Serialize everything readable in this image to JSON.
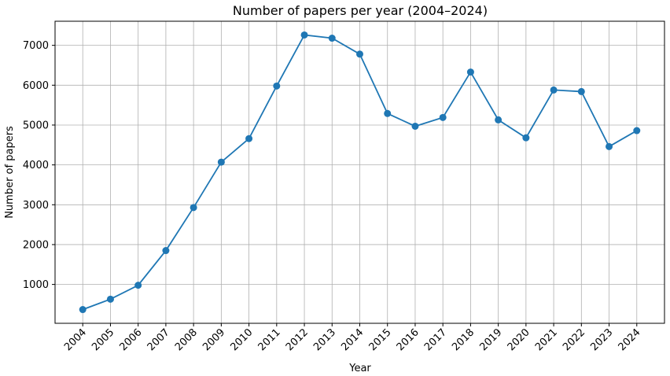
{
  "chart_data": {
    "type": "line",
    "title": "Number of papers per year (2004–2024)",
    "x_label": "Year",
    "y_label": "Number of papers",
    "series": [
      {
        "name": "Number of papers",
        "color": "#1f77b4",
        "x": [
          2004,
          2005,
          2006,
          2007,
          2008,
          2009,
          2010,
          2011,
          2012,
          2013,
          2014,
          2015,
          2016,
          2017,
          2018,
          2019,
          2020,
          2021,
          2022,
          2023,
          2024
        ],
        "values": [
          370,
          630,
          980,
          1850,
          2930,
          4070,
          4660,
          5980,
          7260,
          7180,
          6780,
          5290,
          4970,
          5190,
          6330,
          5130,
          4680,
          5880,
          5840,
          4460,
          4860
        ]
      }
    ],
    "xlim": [
      2003,
      2025
    ],
    "xticks": [
      2004,
      2005,
      2006,
      2007,
      2008,
      2009,
      2010,
      2011,
      2012,
      2013,
      2014,
      2015,
      2016,
      2017,
      2018,
      2019,
      2020,
      2021,
      2022,
      2023,
      2024
    ],
    "ylim": [
      25,
      7605
    ],
    "yticks": [
      1000,
      2000,
      3000,
      4000,
      5000,
      6000,
      7000
    ],
    "grid": true
  }
}
